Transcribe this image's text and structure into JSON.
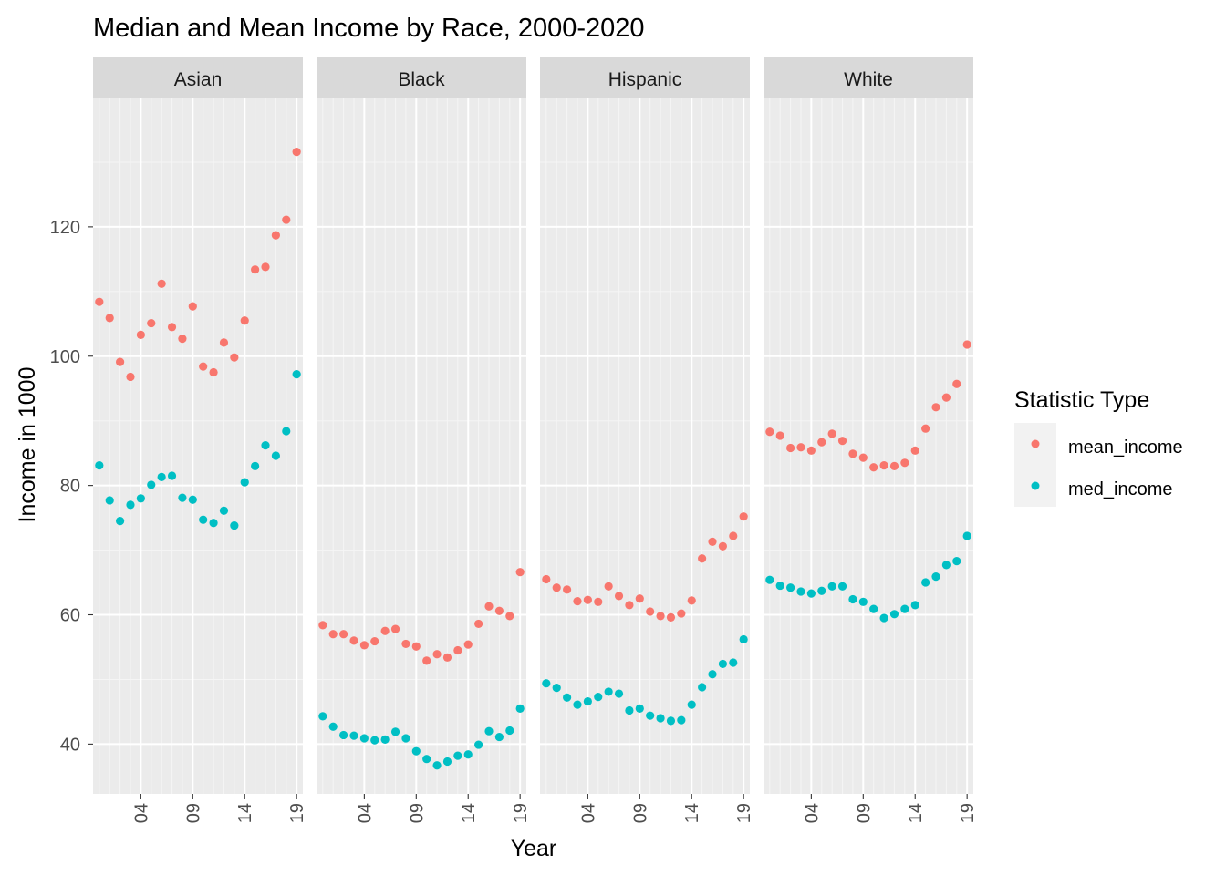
{
  "chart_data": {
    "type": "scatter",
    "title": "Median and Mean Income by Race, 2000-2020",
    "xlabel": "Year",
    "ylabel": "Income in 1000",
    "facets": [
      "Asian",
      "Black",
      "Hispanic",
      "White"
    ],
    "x": [
      2000,
      2001,
      2002,
      2003,
      2004,
      2005,
      2006,
      2007,
      2008,
      2009,
      2010,
      2011,
      2012,
      2013,
      2014,
      2015,
      2016,
      2017,
      2018,
      2019
    ],
    "x_ticks": [
      2004,
      2009,
      2014,
      2019
    ],
    "x_tick_labels": [
      "04",
      "09",
      "14",
      "19"
    ],
    "xlim": [
      1999.4,
      2019.6
    ],
    "ylim": [
      32.3,
      140
    ],
    "y_ticks": [
      40,
      60,
      80,
      100,
      120
    ],
    "y_tick_labels": [
      "40",
      "60",
      "80",
      "100",
      "120"
    ],
    "legend": {
      "title": "Statistic Type",
      "position": "right",
      "entries": [
        {
          "key": "mean_income",
          "label": "mean_income",
          "color": "#F8766D"
        },
        {
          "key": "med_income",
          "label": "med_income",
          "color": "#00BFC4"
        }
      ]
    },
    "series": {
      "Asian": {
        "mean_income": [
          108.4,
          105.9,
          99.1,
          96.8,
          103.3,
          105.1,
          111.2,
          104.5,
          102.7,
          107.7,
          98.4,
          97.5,
          102.1,
          99.8,
          105.5,
          113.4,
          113.8,
          118.7,
          121.1,
          131.6
        ],
        "med_income": [
          83.1,
          77.7,
          74.5,
          77.0,
          78.0,
          80.1,
          81.3,
          81.5,
          78.1,
          77.8,
          74.7,
          74.2,
          76.1,
          73.8,
          80.5,
          83.0,
          86.2,
          84.6,
          88.4,
          97.2
        ]
      },
      "Black": {
        "mean_income": [
          58.4,
          57.0,
          57.0,
          56.0,
          55.3,
          55.9,
          57.5,
          57.8,
          55.5,
          55.1,
          52.9,
          53.9,
          53.4,
          54.5,
          55.4,
          58.6,
          61.3,
          60.6,
          59.8,
          66.6
        ],
        "med_income": [
          44.3,
          42.7,
          41.4,
          41.3,
          40.9,
          40.6,
          40.7,
          41.9,
          40.9,
          38.9,
          37.7,
          36.7,
          37.3,
          38.2,
          38.4,
          39.9,
          42.0,
          41.1,
          42.1,
          45.5
        ]
      },
      "Hispanic": {
        "mean_income": [
          65.5,
          64.2,
          63.9,
          62.1,
          62.3,
          62.0,
          64.4,
          62.9,
          61.5,
          62.5,
          60.5,
          59.8,
          59.6,
          60.2,
          62.2,
          68.7,
          71.3,
          70.6,
          72.2,
          75.2
        ],
        "med_income": [
          49.4,
          48.7,
          47.2,
          46.1,
          46.6,
          47.3,
          48.1,
          47.8,
          45.2,
          45.5,
          44.4,
          44.0,
          43.6,
          43.7,
          46.1,
          48.8,
          50.8,
          52.4,
          52.6,
          56.2
        ]
      },
      "White": {
        "mean_income": [
          88.3,
          87.7,
          85.8,
          85.9,
          85.4,
          86.7,
          88.0,
          86.9,
          84.9,
          84.3,
          82.8,
          83.1,
          83.0,
          83.5,
          85.4,
          88.8,
          92.1,
          93.6,
          95.7,
          101.8
        ],
        "med_income": [
          65.4,
          64.5,
          64.2,
          63.6,
          63.3,
          63.7,
          64.4,
          64.4,
          62.4,
          62.0,
          60.9,
          59.5,
          60.1,
          60.9,
          61.5,
          65.0,
          65.9,
          67.7,
          68.3,
          72.2
        ]
      }
    }
  }
}
